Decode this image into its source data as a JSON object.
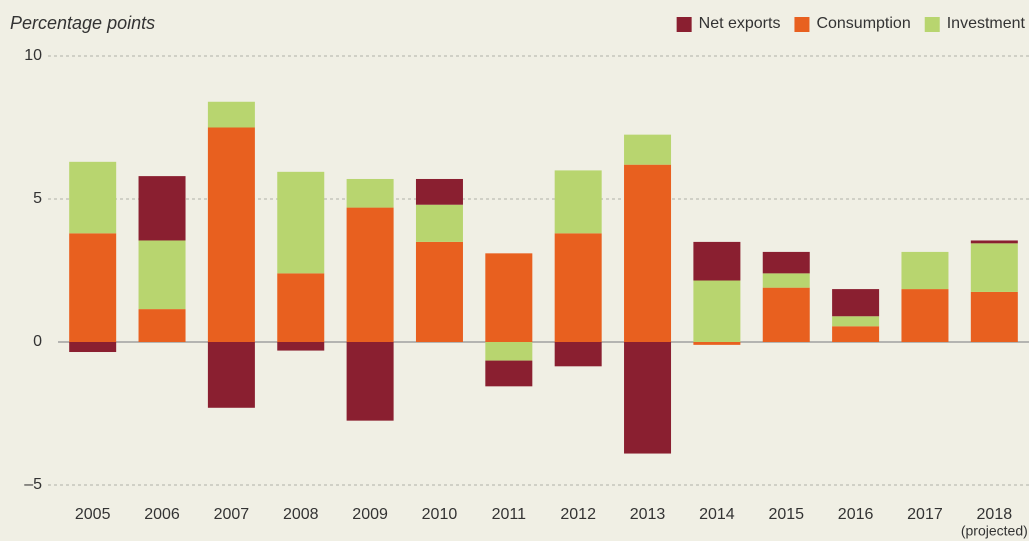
{
  "chart_data": {
    "type": "stacked_bar",
    "y_label": "Percentage points",
    "categories": [
      "2005",
      "2006",
      "2007",
      "2008",
      "2009",
      "2010",
      "2011",
      "2012",
      "2013",
      "2014",
      "2015",
      "2016",
      "2017",
      "2018"
    ],
    "category_note": "(projected)",
    "series": [
      {
        "name": "Net exports",
        "color": "#8a1f30",
        "values": [
          -0.35,
          2.25,
          -2.3,
          -0.3,
          -2.75,
          0.9,
          -0.9,
          -0.85,
          -3.9,
          1.35,
          0.75,
          0.95,
          0,
          0.1
        ]
      },
      {
        "name": "Consumption",
        "color": "#e8601f",
        "values": [
          3.8,
          1.15,
          7.5,
          2.4,
          4.7,
          3.5,
          3.1,
          3.8,
          6.2,
          -0.1,
          1.9,
          0.55,
          1.85,
          1.75
        ]
      },
      {
        "name": "Investment",
        "color": "#b8d56f",
        "values": [
          2.5,
          2.4,
          0.9,
          3.55,
          1.0,
          1.3,
          -0.65,
          2.2,
          1.05,
          2.15,
          0.5,
          0.35,
          1.3,
          1.7
        ]
      }
    ],
    "ylim": [
      -5.5,
      10
    ],
    "yticks": [
      {
        "value": -5,
        "label": "–5"
      },
      0,
      5,
      10
    ],
    "grid": true,
    "legend": "top-right"
  }
}
